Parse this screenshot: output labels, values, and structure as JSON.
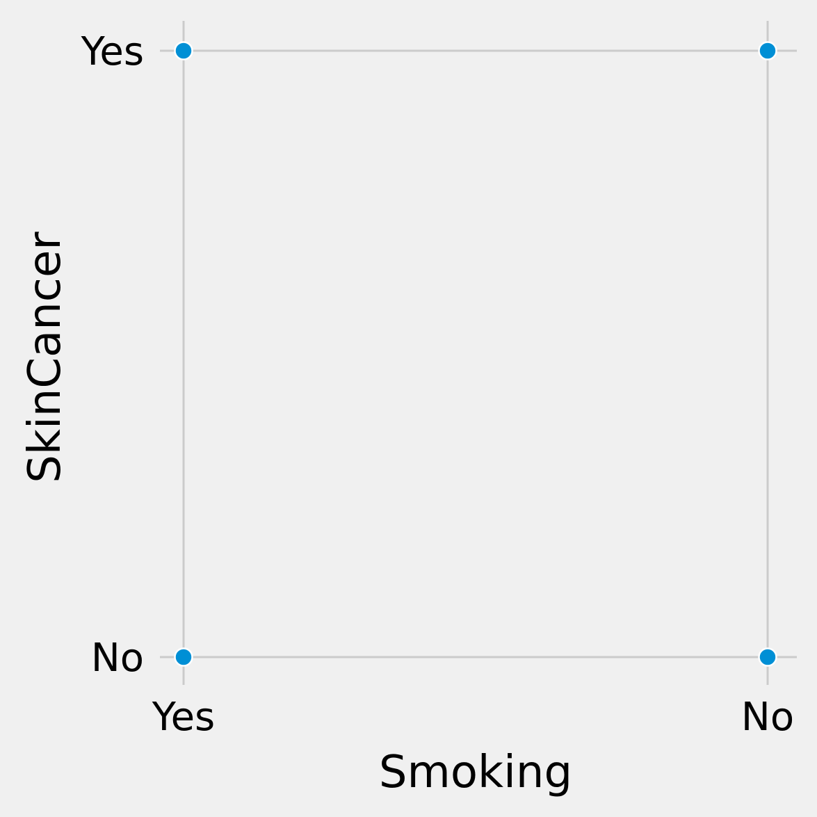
{
  "chart_data": {
    "type": "scatter",
    "xlabel": "Smoking",
    "ylabel": "SkinCancer",
    "x_categories": [
      "Yes",
      "No"
    ],
    "y_categories": [
      "No",
      "Yes"
    ],
    "points": [
      {
        "x": "Yes",
        "y": "Yes"
      },
      {
        "x": "No",
        "y": "Yes"
      },
      {
        "x": "Yes",
        "y": "No"
      },
      {
        "x": "No",
        "y": "No"
      }
    ],
    "grid": true,
    "colors": {
      "background": "#f0f0f0",
      "grid": "#cbcbcb",
      "point": "#008fd5",
      "point_edge": "#ffffff"
    }
  }
}
